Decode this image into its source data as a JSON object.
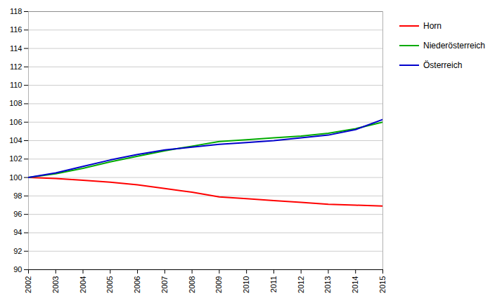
{
  "chart_data": {
    "type": "line",
    "x": [
      2002,
      2003,
      2004,
      2005,
      2006,
      2007,
      2008,
      2009,
      2010,
      2011,
      2012,
      2013,
      2014,
      2015
    ],
    "series": [
      {
        "name": "Horn",
        "color": "#ff0000",
        "values": [
          100.0,
          99.9,
          99.7,
          99.5,
          99.2,
          98.8,
          98.4,
          97.9,
          97.7,
          97.5,
          97.3,
          97.1,
          97.0,
          96.9
        ]
      },
      {
        "name": "Niederösterreich",
        "color": "#00aa00",
        "values": [
          100.0,
          100.4,
          101.0,
          101.7,
          102.3,
          102.9,
          103.4,
          103.9,
          104.1,
          104.3,
          104.5,
          104.8,
          105.3,
          106.0
        ]
      },
      {
        "name": "Österreich",
        "color": "#0000cc",
        "values": [
          100.0,
          100.5,
          101.2,
          101.9,
          102.5,
          103.0,
          103.3,
          103.6,
          103.8,
          104.0,
          104.3,
          104.6,
          105.2,
          106.3
        ]
      }
    ],
    "xlim": [
      2002,
      2015
    ],
    "xticks": [
      2002,
      2003,
      2004,
      2005,
      2006,
      2007,
      2008,
      2009,
      2010,
      2011,
      2012,
      2013,
      2014,
      2015
    ],
    "ylim": [
      90,
      118
    ],
    "yticks": [
      90,
      92,
      94,
      96,
      98,
      100,
      102,
      104,
      106,
      108,
      110,
      112,
      114,
      116,
      118
    ],
    "grid": true,
    "legend": "right"
  }
}
